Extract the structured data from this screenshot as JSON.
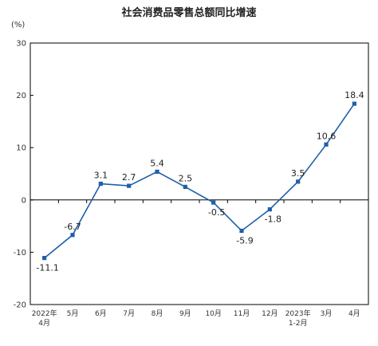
{
  "chart_data": {
    "type": "line",
    "title": "社会消费品零售总额同比增速",
    "unit_label": "(%)",
    "xlabel": "",
    "ylabel": "",
    "ylim": [
      -20,
      30
    ],
    "yticks": [
      -20,
      -10,
      0,
      10,
      20,
      30
    ],
    "categories": [
      [
        "2022年",
        "4月"
      ],
      [
        "5月"
      ],
      [
        "6月"
      ],
      [
        "7月"
      ],
      [
        "8月"
      ],
      [
        "9月"
      ],
      [
        "10月"
      ],
      [
        "11月"
      ],
      [
        "12月"
      ],
      [
        "2023年",
        "1-2月"
      ],
      [
        "3月"
      ],
      [
        "4月"
      ]
    ],
    "series": [
      {
        "values": [
          -11.1,
          -6.7,
          3.1,
          2.7,
          5.4,
          2.5,
          -0.5,
          -5.9,
          -1.8,
          3.5,
          10.6,
          18.4
        ],
        "labels": [
          "-11.1",
          "-6.7",
          "3.1",
          "2.7",
          "5.4",
          "2.5",
          "-0.5",
          "-5.9",
          "-1.8",
          "3.5",
          "10.6",
          "18.4"
        ],
        "label_pos": [
          "below",
          "above",
          "above",
          "above",
          "above",
          "above",
          "below",
          "below",
          "below",
          "above",
          "above",
          "above"
        ]
      }
    ],
    "line_color": "#1f5fa8",
    "marker_color": "#1f5fa8",
    "axis_color": "#000000",
    "grid": false,
    "legend": "none"
  }
}
